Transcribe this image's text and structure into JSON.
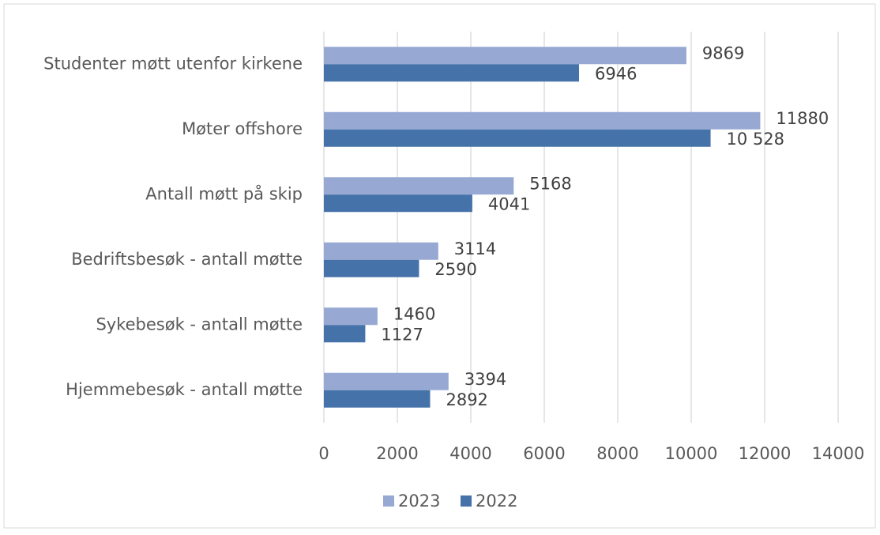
{
  "chart_data": {
    "type": "barh",
    "categories": [
      "Studenter møtt utenfor kirkene",
      "Møter offshore",
      "Antall møtt på skip",
      "Bedriftsbesøk - antall møtte",
      "Sykebesøk - antall møtte",
      "Hjemmebesøk - antall møtte"
    ],
    "series": [
      {
        "name": "2023",
        "color": "#97a9d3",
        "values": [
          9869,
          11880,
          5168,
          3114,
          1460,
          3394
        ]
      },
      {
        "name": "2022",
        "color": "#4572a9",
        "values": [
          6946,
          10528,
          4041,
          2590,
          1127,
          2892
        ],
        "value_labels": [
          "6946",
          "10 528",
          "4041",
          "2590",
          "1127",
          "2892"
        ]
      }
    ],
    "xlim": [
      0,
      14000
    ],
    "xticks": [
      0,
      2000,
      4000,
      6000,
      8000,
      10000,
      12000,
      14000
    ],
    "grid": true,
    "legend": "bottom"
  }
}
